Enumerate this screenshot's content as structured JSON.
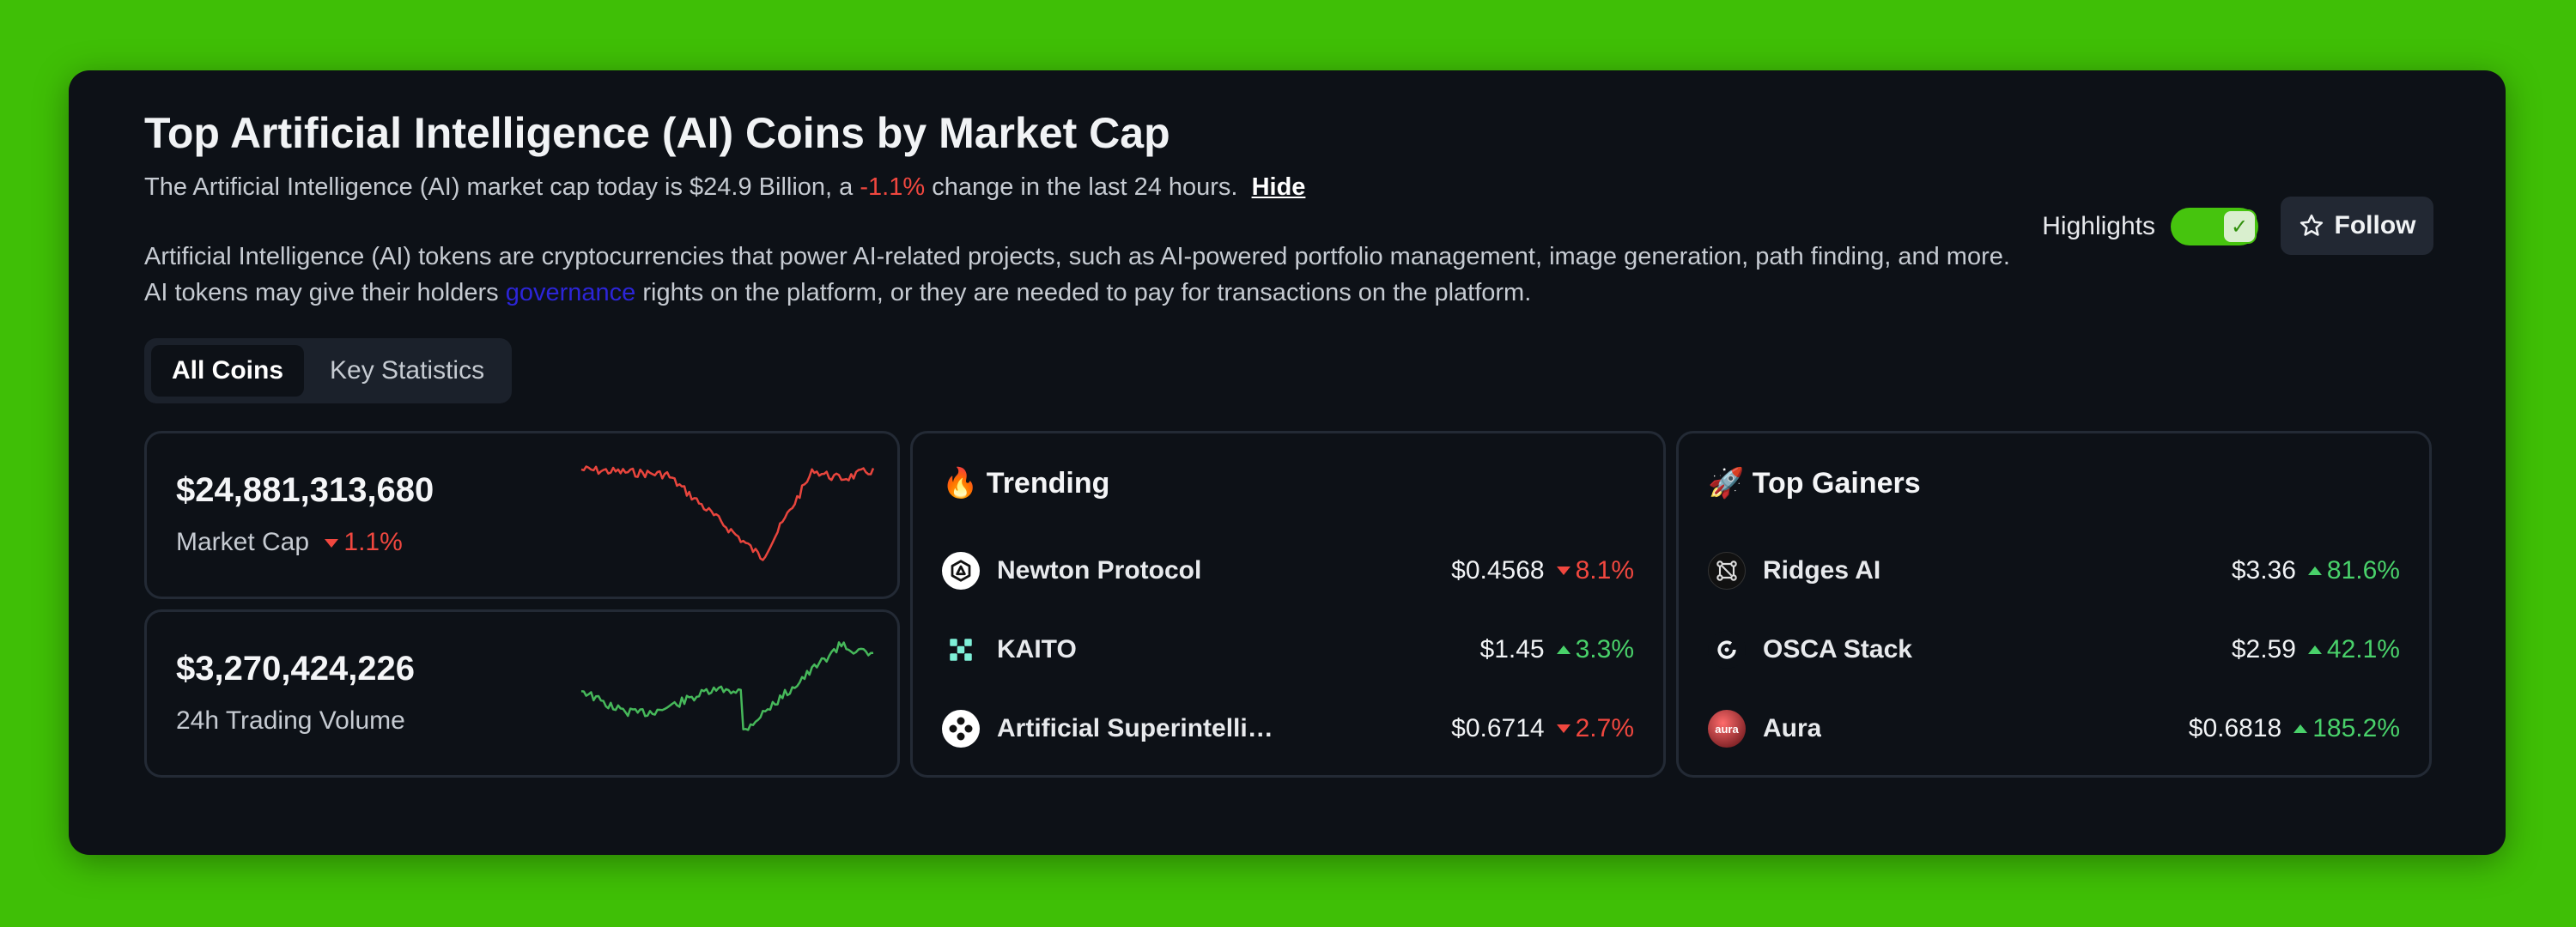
{
  "header": {
    "title": "Top Artificial Intelligence (AI) Coins by Market Cap",
    "summary_prefix": "The Artificial Intelligence (AI) market cap today is $24.9 Billion, a",
    "summary_change": "-1.1%",
    "summary_suffix": "change in the last 24 hours.",
    "hide_label": "Hide",
    "desc_part1": "Artificial Intelligence (AI) tokens are cryptocurrencies that power AI-related projects, such as AI-powered portfolio management, image generation, path finding, and more. AI tokens may give their holders",
    "desc_link": "governance",
    "desc_part2": "rights on the platform, or they are needed to pay for transactions on the platform."
  },
  "controls": {
    "highlights_label": "Highlights",
    "highlights_on": true,
    "follow_label": "Follow"
  },
  "tabs": [
    {
      "label": "All Coins",
      "active": true
    },
    {
      "label": "Key Statistics",
      "active": false
    }
  ],
  "stats": [
    {
      "value": "$24,881,313,680",
      "label": "Market Cap",
      "change": "1.1%",
      "direction": "down",
      "color": "#f0473f"
    },
    {
      "value": "$3,270,424,226",
      "label": "24h Trading Volume",
      "change": "",
      "direction": "up",
      "color": "#49d16a"
    }
  ],
  "trending": {
    "title": "Trending",
    "title_icon": "fire-icon",
    "items": [
      {
        "name": "Newton Protocol",
        "price": "$0.4568",
        "change": "8.1%",
        "direction": "down",
        "icon": "newton-protocol-icon"
      },
      {
        "name": "KAITO",
        "price": "$1.45",
        "change": "3.3%",
        "direction": "up",
        "icon": "kaito-icon"
      },
      {
        "name": "Artificial Superintelligence Alliance",
        "price": "$0.6714",
        "change": "2.7%",
        "direction": "down",
        "icon": "asi-alliance-icon"
      }
    ]
  },
  "gainers": {
    "title": "Top Gainers",
    "title_icon": "rocket-icon",
    "items": [
      {
        "name": "Ridges AI",
        "price": "$3.36",
        "change": "81.6%",
        "direction": "up",
        "icon": "ridges-ai-icon"
      },
      {
        "name": "OSCA Stack",
        "price": "$2.59",
        "change": "42.1%",
        "direction": "up",
        "icon": "osca-stack-icon"
      },
      {
        "name": "Aura",
        "icon_text": "aura",
        "price": "$0.6818",
        "change": "185.2%",
        "direction": "up",
        "icon": "aura-icon"
      }
    ]
  },
  "colors": {
    "negative": "#f0473f",
    "positive": "#49d16a",
    "accent_green": "#46c40e"
  }
}
